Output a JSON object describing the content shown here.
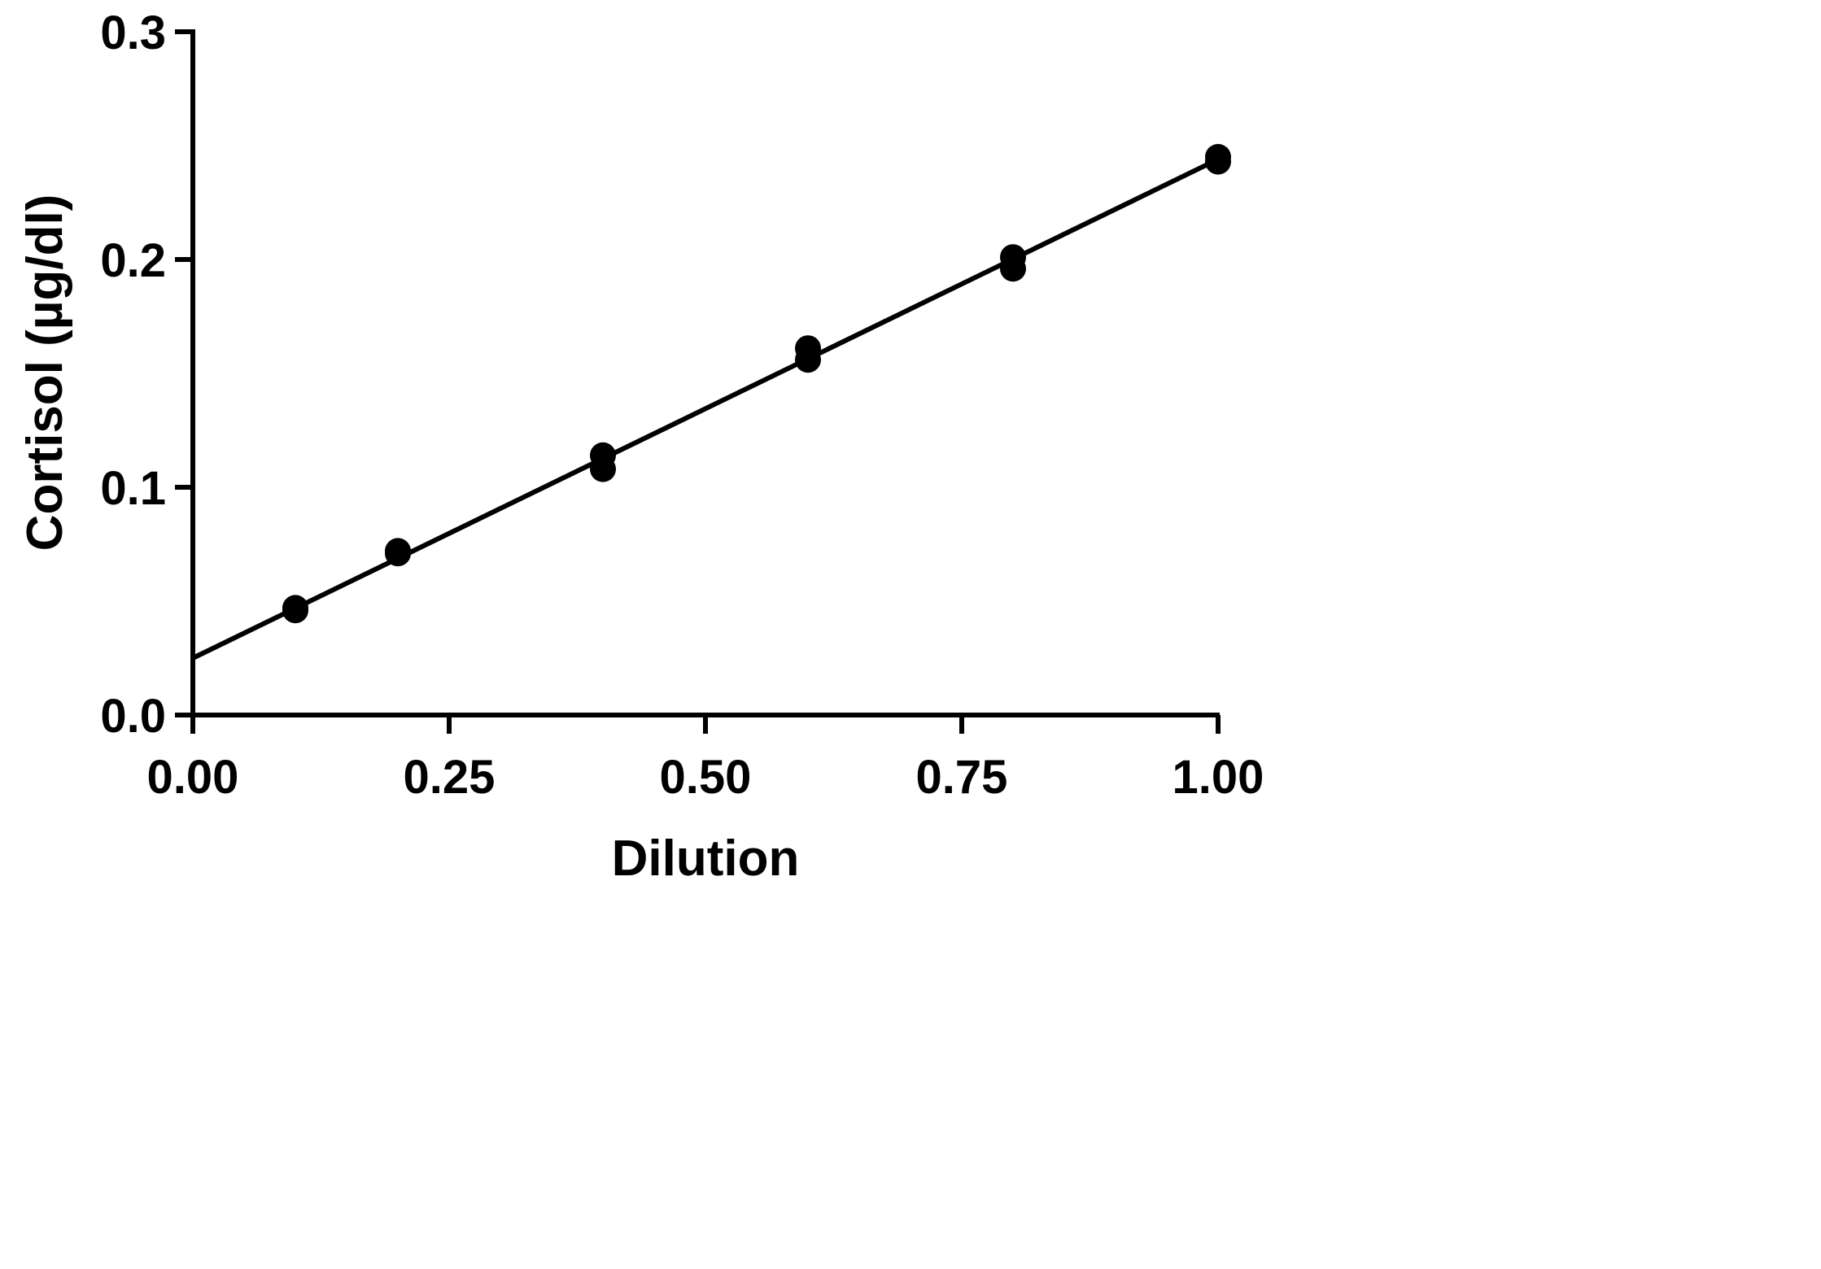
{
  "chart_data": {
    "type": "scatter",
    "xlabel": "Dilution",
    "ylabel": "Cortisol (µg/dl)",
    "xlim": [
      0,
      1
    ],
    "ylim": [
      0,
      0.3
    ],
    "x_ticks": [
      "0.00",
      "0.25",
      "0.50",
      "0.75",
      "1.00"
    ],
    "y_ticks": [
      "0.0",
      "0.1",
      "0.2",
      "0.3"
    ],
    "grid": false,
    "series": [
      {
        "points": [
          {
            "x": 0.1,
            "y": 0.046
          },
          {
            "x": 0.1,
            "y": 0.047
          },
          {
            "x": 0.2,
            "y": 0.071
          },
          {
            "x": 0.2,
            "y": 0.072
          },
          {
            "x": 0.4,
            "y": 0.108
          },
          {
            "x": 0.4,
            "y": 0.114
          },
          {
            "x": 0.6,
            "y": 0.156
          },
          {
            "x": 0.6,
            "y": 0.161
          },
          {
            "x": 0.8,
            "y": 0.196
          },
          {
            "x": 0.8,
            "y": 0.201
          },
          {
            "x": 1.0,
            "y": 0.243
          },
          {
            "x": 1.0,
            "y": 0.245
          }
        ],
        "fit_line": {
          "x": [
            0,
            1
          ],
          "y": [
            0.025,
            0.244
          ]
        },
        "color": "#000000"
      }
    ]
  }
}
